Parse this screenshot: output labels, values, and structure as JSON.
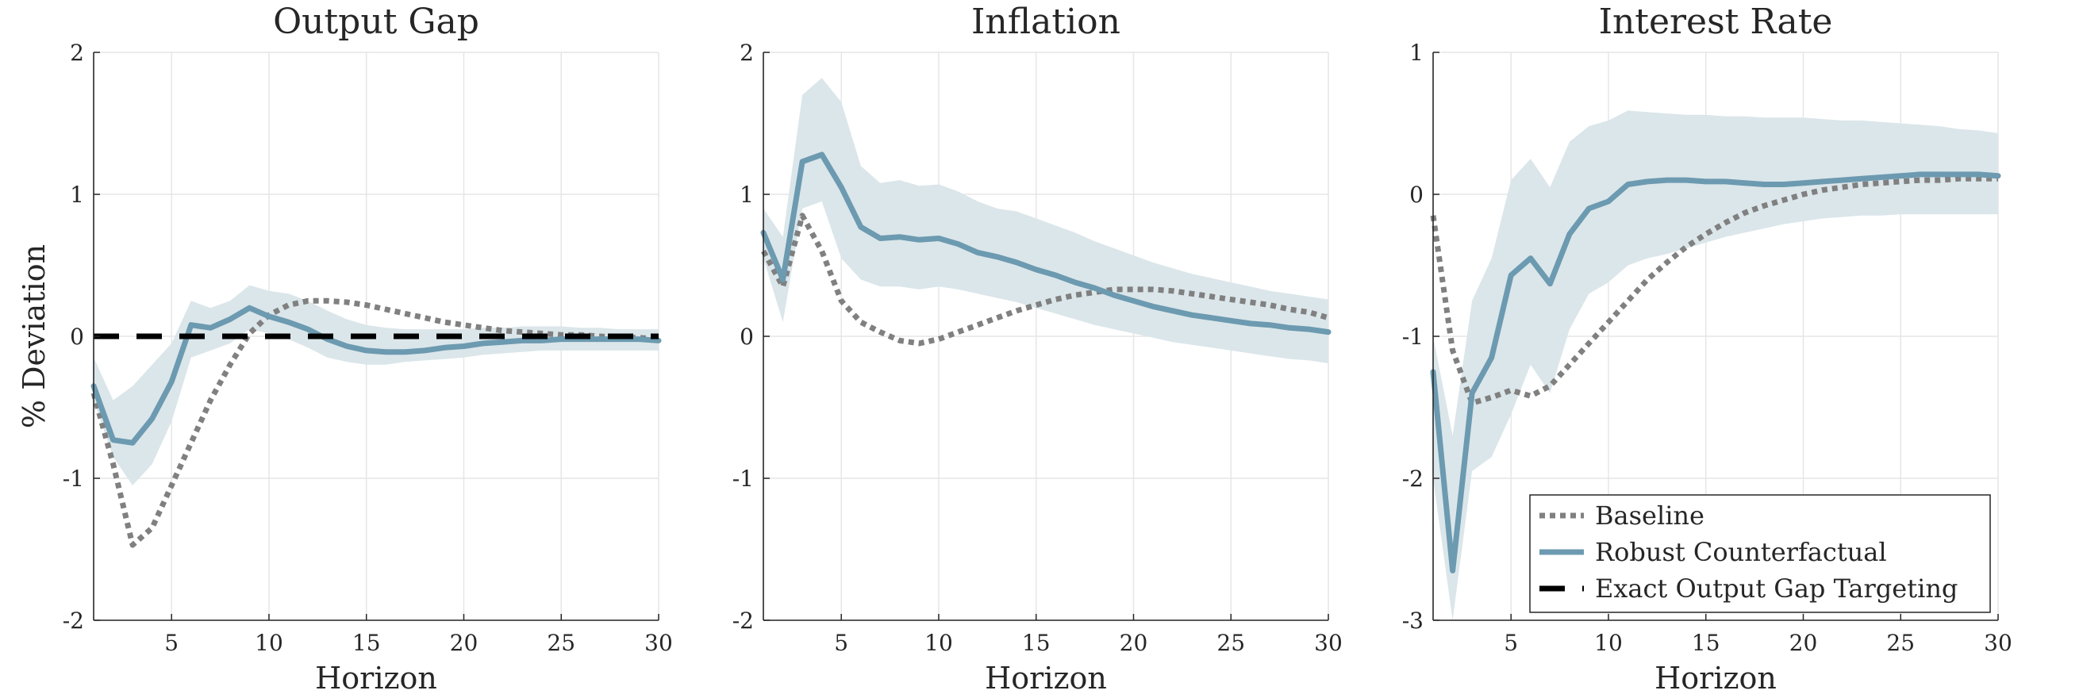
{
  "chart_data": [
    {
      "type": "line",
      "title": "Output Gap",
      "xlabel": "Horizon",
      "ylabel": "% Deviation",
      "xlim": [
        1,
        30
      ],
      "ylim": [
        -2,
        2
      ],
      "xticks": [
        5,
        10,
        15,
        20,
        25,
        30
      ],
      "yticks": [
        -2,
        -1,
        0,
        1,
        2
      ],
      "grid": true,
      "x": [
        1,
        2,
        3,
        4,
        5,
        6,
        7,
        8,
        9,
        10,
        11,
        12,
        13,
        14,
        15,
        16,
        17,
        18,
        19,
        20,
        21,
        22,
        23,
        24,
        25,
        26,
        27,
        28,
        29,
        30
      ],
      "band": {
        "color": "#dbe6ea",
        "lower": [
          -0.45,
          -0.85,
          -1.05,
          -0.9,
          -0.6,
          -0.15,
          -0.1,
          -0.05,
          0.05,
          0.02,
          -0.02,
          -0.08,
          -0.15,
          -0.18,
          -0.2,
          -0.2,
          -0.18,
          -0.17,
          -0.16,
          -0.15,
          -0.13,
          -0.12,
          -0.11,
          -0.1,
          -0.1,
          -0.1,
          -0.1,
          -0.1,
          -0.1,
          -0.1
        ],
        "upper": [
          -0.15,
          -0.45,
          -0.35,
          -0.2,
          -0.05,
          0.25,
          0.2,
          0.25,
          0.36,
          0.32,
          0.3,
          0.25,
          0.18,
          0.12,
          0.08,
          0.06,
          0.05,
          0.05,
          0.05,
          0.05,
          0.06,
          0.06,
          0.07,
          0.07,
          0.07,
          0.06,
          0.06,
          0.05,
          0.05,
          0.05
        ]
      },
      "series": [
        {
          "name": "Baseline",
          "style": "dotted",
          "color": "#808080",
          "values": [
            -0.4,
            -0.9,
            -1.47,
            -1.35,
            -1.05,
            -0.75,
            -0.45,
            -0.2,
            0.02,
            0.15,
            0.22,
            0.25,
            0.25,
            0.24,
            0.22,
            0.19,
            0.16,
            0.13,
            0.1,
            0.08,
            0.06,
            0.04,
            0.03,
            0.02,
            0.01,
            0.01,
            0.0,
            -0.01,
            -0.01,
            -0.02
          ]
        },
        {
          "name": "Robust Counterfactual",
          "style": "solid",
          "color": "#6c9ab0",
          "values": [
            -0.35,
            -0.73,
            -0.75,
            -0.58,
            -0.32,
            0.08,
            0.06,
            0.12,
            0.2,
            0.14,
            0.1,
            0.05,
            -0.02,
            -0.07,
            -0.1,
            -0.11,
            -0.11,
            -0.1,
            -0.08,
            -0.07,
            -0.05,
            -0.04,
            -0.03,
            -0.03,
            -0.02,
            -0.02,
            -0.02,
            -0.02,
            -0.02,
            -0.03
          ]
        },
        {
          "name": "Exact Output Gap Targeting",
          "style": "dashed",
          "color": "#000000",
          "values": [
            0,
            0,
            0,
            0,
            0,
            0,
            0,
            0,
            0,
            0,
            0,
            0,
            0,
            0,
            0,
            0,
            0,
            0,
            0,
            0,
            0,
            0,
            0,
            0,
            0,
            0,
            0,
            0,
            0,
            0
          ]
        }
      ]
    },
    {
      "type": "line",
      "title": "Inflation",
      "xlabel": "Horizon",
      "ylabel": "",
      "xlim": [
        1,
        30
      ],
      "ylim": [
        -2,
        2
      ],
      "xticks": [
        5,
        10,
        15,
        20,
        25,
        30
      ],
      "yticks": [
        -2,
        -1,
        0,
        1,
        2
      ],
      "grid": true,
      "x": [
        1,
        2,
        3,
        4,
        5,
        6,
        7,
        8,
        9,
        10,
        11,
        12,
        13,
        14,
        15,
        16,
        17,
        18,
        19,
        20,
        21,
        22,
        23,
        24,
        25,
        26,
        27,
        28,
        29,
        30
      ],
      "band": {
        "color": "#dbe6ea",
        "lower": [
          0.55,
          0.1,
          0.9,
          0.95,
          0.55,
          0.4,
          0.35,
          0.35,
          0.33,
          0.35,
          0.33,
          0.3,
          0.27,
          0.24,
          0.2,
          0.16,
          0.12,
          0.08,
          0.05,
          0.02,
          -0.01,
          -0.04,
          -0.06,
          -0.08,
          -0.1,
          -0.12,
          -0.14,
          -0.16,
          -0.17,
          -0.19
        ],
        "upper": [
          0.9,
          0.7,
          1.7,
          1.82,
          1.65,
          1.2,
          1.08,
          1.1,
          1.06,
          1.07,
          1.02,
          0.95,
          0.9,
          0.88,
          0.83,
          0.78,
          0.73,
          0.67,
          0.62,
          0.57,
          0.52,
          0.48,
          0.44,
          0.41,
          0.38,
          0.35,
          0.32,
          0.3,
          0.28,
          0.26
        ]
      },
      "series": [
        {
          "name": "Baseline",
          "style": "dotted",
          "color": "#808080",
          "values": [
            0.6,
            0.35,
            0.85,
            0.6,
            0.25,
            0.1,
            0.03,
            -0.03,
            -0.05,
            -0.02,
            0.03,
            0.08,
            0.13,
            0.18,
            0.22,
            0.26,
            0.29,
            0.31,
            0.33,
            0.33,
            0.33,
            0.32,
            0.3,
            0.28,
            0.26,
            0.24,
            0.22,
            0.19,
            0.17,
            0.13
          ]
        },
        {
          "name": "Robust Counterfactual",
          "style": "solid",
          "color": "#6c9ab0",
          "values": [
            0.73,
            0.4,
            1.23,
            1.28,
            1.05,
            0.77,
            0.69,
            0.7,
            0.68,
            0.69,
            0.65,
            0.59,
            0.56,
            0.52,
            0.47,
            0.43,
            0.38,
            0.34,
            0.29,
            0.25,
            0.21,
            0.18,
            0.15,
            0.13,
            0.11,
            0.09,
            0.08,
            0.06,
            0.05,
            0.03
          ]
        }
      ]
    },
    {
      "type": "line",
      "title": "Interest Rate",
      "xlabel": "Horizon",
      "ylabel": "",
      "xlim": [
        1,
        30
      ],
      "ylim": [
        -3,
        1
      ],
      "xticks": [
        5,
        10,
        15,
        20,
        25,
        30
      ],
      "yticks": [
        -3,
        -2,
        -1,
        0,
        1
      ],
      "grid": true,
      "x": [
        1,
        2,
        3,
        4,
        5,
        6,
        7,
        8,
        9,
        10,
        11,
        12,
        13,
        14,
        15,
        16,
        17,
        18,
        19,
        20,
        21,
        22,
        23,
        24,
        25,
        26,
        27,
        28,
        29,
        30
      ],
      "band": {
        "color": "#dbe6ea",
        "lower": [
          -2.0,
          -3.0,
          -1.95,
          -1.85,
          -1.55,
          -1.2,
          -1.4,
          -0.95,
          -0.7,
          -0.62,
          -0.5,
          -0.45,
          -0.42,
          -0.38,
          -0.34,
          -0.3,
          -0.27,
          -0.24,
          -0.21,
          -0.19,
          -0.17,
          -0.16,
          -0.15,
          -0.15,
          -0.14,
          -0.14,
          -0.14,
          -0.14,
          -0.14,
          -0.14
        ],
        "upper": [
          -1.0,
          -1.7,
          -0.75,
          -0.45,
          0.1,
          0.25,
          0.05,
          0.37,
          0.48,
          0.52,
          0.59,
          0.58,
          0.57,
          0.56,
          0.56,
          0.55,
          0.55,
          0.54,
          0.54,
          0.54,
          0.53,
          0.52,
          0.52,
          0.51,
          0.5,
          0.49,
          0.48,
          0.46,
          0.45,
          0.43
        ]
      },
      "series": [
        {
          "name": "Baseline",
          "style": "dotted",
          "color": "#808080",
          "values": [
            -0.15,
            -1.1,
            -1.47,
            -1.43,
            -1.38,
            -1.42,
            -1.35,
            -1.2,
            -1.05,
            -0.9,
            -0.75,
            -0.6,
            -0.48,
            -0.37,
            -0.28,
            -0.2,
            -0.13,
            -0.08,
            -0.04,
            0.0,
            0.03,
            0.05,
            0.07,
            0.08,
            0.09,
            0.1,
            0.1,
            0.11,
            0.11,
            0.11
          ]
        },
        {
          "name": "Robust Counterfactual",
          "style": "solid",
          "color": "#6c9ab0",
          "values": [
            -1.25,
            -2.65,
            -1.4,
            -1.15,
            -0.57,
            -0.45,
            -0.63,
            -0.28,
            -0.1,
            -0.05,
            0.07,
            0.09,
            0.1,
            0.1,
            0.09,
            0.09,
            0.08,
            0.07,
            0.07,
            0.08,
            0.09,
            0.1,
            0.11,
            0.12,
            0.13,
            0.14,
            0.14,
            0.14,
            0.14,
            0.13
          ]
        }
      ],
      "legend": {
        "placement": "bottom-right",
        "entries": [
          {
            "label": "Baseline",
            "style": "dotted",
            "color": "#808080"
          },
          {
            "label": "Robust Counterfactual",
            "style": "solid",
            "color": "#6c9ab0"
          },
          {
            "label": "Exact Output Gap Targeting",
            "style": "dashed",
            "color": "#000000"
          }
        ]
      }
    }
  ]
}
